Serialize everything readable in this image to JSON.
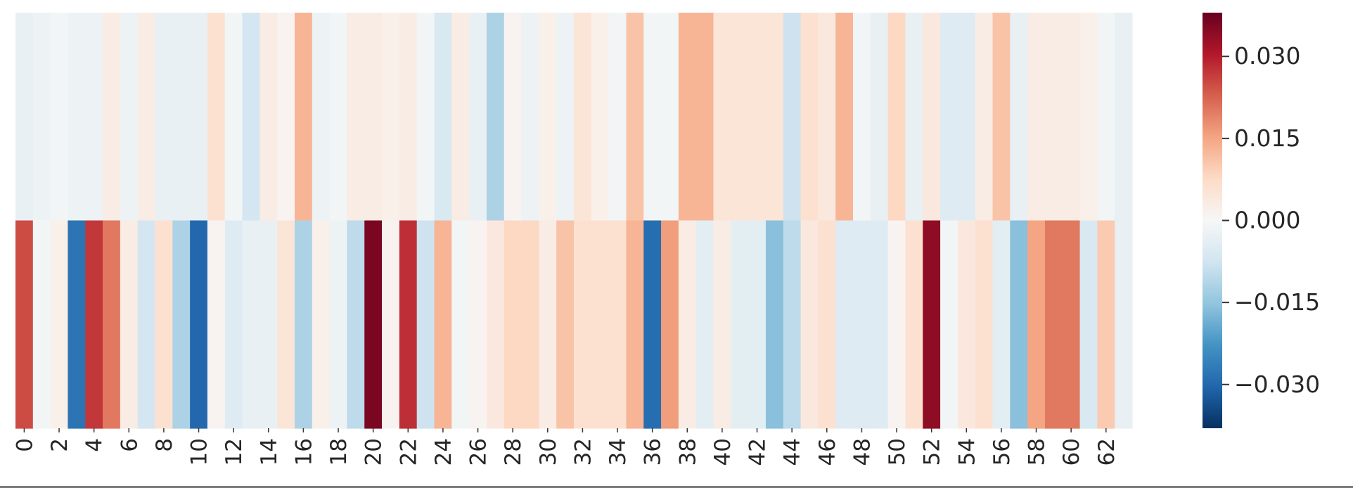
{
  "chart_data": {
    "type": "heatmap",
    "title": "",
    "xlabel": "",
    "ylabel": "",
    "colormap": "RdBu_r",
    "vmin": -0.038,
    "vmax": 0.038,
    "n_rows": 2,
    "x_tick_labels": [
      "0",
      "2",
      "4",
      "6",
      "8",
      "10",
      "12",
      "14",
      "16",
      "18",
      "20",
      "22",
      "24",
      "26",
      "28",
      "30",
      "32",
      "34",
      "36",
      "38",
      "40",
      "42",
      "44",
      "46",
      "48",
      "50",
      "52",
      "54",
      "56",
      "58",
      "60",
      "62"
    ],
    "colorbar_ticks": [
      {
        "value": 0.03,
        "label": "0.030"
      },
      {
        "value": 0.015,
        "label": "0.015"
      },
      {
        "value": 0.0,
        "label": "0.000"
      },
      {
        "value": -0.015,
        "label": "−0.015"
      },
      {
        "value": -0.03,
        "label": "−0.030"
      }
    ],
    "rows": [
      [
        -0.003,
        -0.002,
        -0.001,
        -0.002,
        -0.002,
        0.003,
        -0.002,
        0.003,
        -0.003,
        -0.003,
        -0.003,
        0.006,
        -0.001,
        -0.007,
        0.003,
        0.001,
        0.013,
        -0.002,
        -0.001,
        0.003,
        0.003,
        0.002,
        0.003,
        -0.001,
        -0.006,
        0.003,
        -0.003,
        -0.012,
        0.001,
        -0.002,
        0.002,
        -0.002,
        0.005,
        0.002,
        -0.001,
        0.011,
        -0.001,
        -0.001,
        0.013,
        0.013,
        0.005,
        0.005,
        0.005,
        0.005,
        -0.008,
        0.006,
        0.004,
        0.013,
        -0.001,
        -0.003,
        0.008,
        -0.003,
        0.004,
        -0.005,
        -0.005,
        0.003,
        0.011,
        -0.003,
        0.003,
        0.003,
        0.003,
        0.002,
        -0.001,
        -0.003
      ],
      [
        0.025,
        -0.001,
        0.002,
        -0.028,
        0.027,
        0.02,
        0.003,
        -0.007,
        0.006,
        -0.012,
        -0.03,
        0.001,
        -0.005,
        -0.003,
        -0.003,
        0.005,
        -0.012,
        0.002,
        -0.002,
        -0.01,
        0.036,
        0.001,
        0.028,
        -0.008,
        0.013,
        -0.001,
        0.001,
        0.004,
        0.008,
        0.008,
        0.003,
        0.011,
        0.006,
        0.006,
        0.006,
        0.013,
        -0.029,
        0.016,
        0.003,
        -0.004,
        0.003,
        -0.004,
        -0.004,
        -0.016,
        -0.01,
        0.004,
        0.006,
        -0.005,
        -0.005,
        -0.005,
        0.001,
        0.006,
        0.034,
        -0.001,
        0.004,
        0.006,
        -0.004,
        -0.016,
        0.015,
        0.02,
        0.02,
        -0.006,
        0.01,
        -0.003
      ]
    ]
  }
}
